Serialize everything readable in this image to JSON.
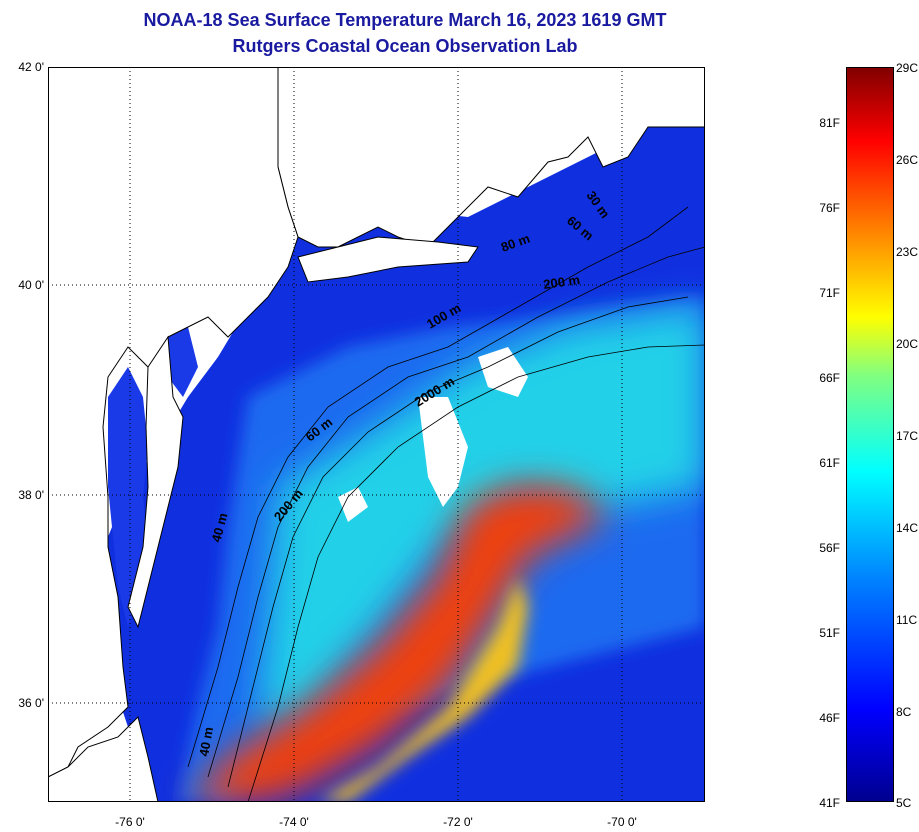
{
  "header": {
    "title": "NOAA-18 Sea Surface Temperature March 16, 2023 1619 GMT",
    "subtitle": "Rutgers Coastal Ocean Observation Lab"
  },
  "map": {
    "lat_labels": [
      "42 0'",
      "40 0'",
      "38 0'",
      "36 0'"
    ],
    "lon_labels": [
      "-76 0'",
      "-74 0'",
      "-72 0'",
      "-70 0'"
    ],
    "contour_labels": [
      "30 m",
      "60 m",
      "80 m",
      "200 m",
      "100 m",
      "2000 m",
      "60 m",
      "200 m",
      "40 m",
      "40 m"
    ],
    "land_color": "#ffffff",
    "coast_color": "#000000"
  },
  "colorbar": {
    "fahrenheit_labels": [
      "81F",
      "76F",
      "71F",
      "66F",
      "61F",
      "56F",
      "51F",
      "46F",
      "41F"
    ],
    "celsius_labels": [
      "29C",
      "26C",
      "23C",
      "20C",
      "17C",
      "14C",
      "11C",
      "8C",
      "5C"
    ],
    "colors": [
      "#00008f",
      "#0000ff",
      "#0080ff",
      "#00ffff",
      "#80ff80",
      "#ffff00",
      "#ff8000",
      "#ff0000",
      "#800000"
    ]
  }
}
